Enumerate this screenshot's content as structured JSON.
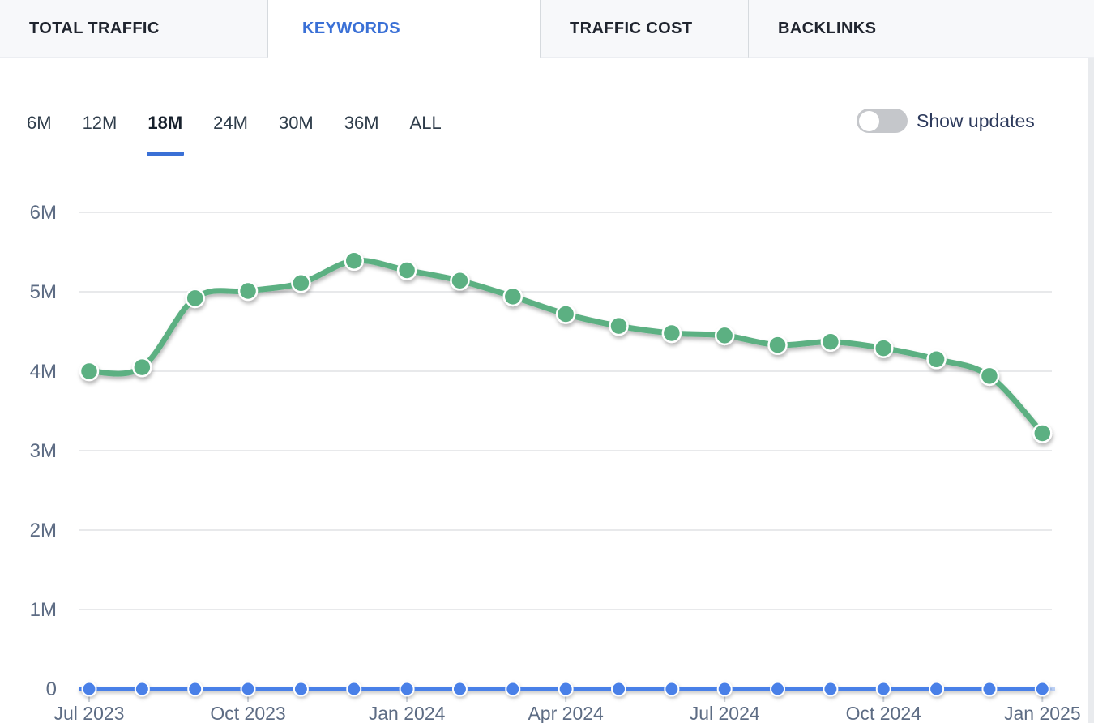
{
  "tabs": [
    {
      "label": "TOTAL TRAFFIC",
      "active": false
    },
    {
      "label": "KEYWORDS",
      "active": true
    },
    {
      "label": "TRAFFIC COST",
      "active": false
    },
    {
      "label": "BACKLINKS",
      "active": false
    }
  ],
  "period_selector": {
    "options": [
      "6M",
      "12M",
      "18M",
      "24M",
      "30M",
      "36M",
      "ALL"
    ],
    "selected": "18M"
  },
  "show_updates_toggle": {
    "label": "Show updates",
    "state": "off"
  },
  "colors": {
    "active_tab_blue": "#3a70d6",
    "tabbar_background": "#f7f8fa",
    "green_line": "#5cb082",
    "blue_line": "#4a80e8",
    "gridline": "#e8e9eb",
    "axis_label": "#5d6c84",
    "toggle_off_gray": "#c5c7cb"
  },
  "chart_data": {
    "type": "line",
    "unit": "keywords, millions",
    "x": [
      "Jul 2023",
      "Aug 2023",
      "Sep 2023",
      "Oct 2023",
      "Nov 2023",
      "Dec 2023",
      "Jan 2024",
      "Feb 2024",
      "Mar 2024",
      "Apr 2024",
      "May 2024",
      "Jun 2024",
      "Jul 2024",
      "Aug 2024",
      "Sep 2024",
      "Oct 2024",
      "Nov 2024",
      "Dec 2024",
      "Jan 2025"
    ],
    "series": [
      {
        "name": "green-series",
        "color": "#5cb082",
        "values_millions": [
          4.0,
          4.05,
          4.92,
          5.01,
          5.11,
          5.39,
          5.27,
          5.14,
          4.94,
          4.72,
          4.57,
          4.48,
          4.45,
          4.33,
          4.37,
          4.29,
          4.15,
          3.94,
          3.22
        ]
      },
      {
        "name": "blue-series",
        "color": "#4a80e8",
        "values_millions": [
          0,
          0,
          0,
          0,
          0,
          0,
          0,
          0,
          0,
          0,
          0,
          0,
          0,
          0,
          0,
          0,
          0,
          0,
          0
        ]
      }
    ],
    "y_ticks": [
      "0",
      "1M",
      "2M",
      "3M",
      "4M",
      "5M",
      "6M"
    ],
    "x_tick_labels": [
      "Jul 2023",
      "Oct 2023",
      "Jan 2024",
      "Apr 2024",
      "Jul 2024",
      "Oct 2024",
      "Jan 2025"
    ],
    "x_tick_every": 3,
    "ylim_millions": [
      0,
      6
    ],
    "grid": "horizontal",
    "legend": "none"
  }
}
